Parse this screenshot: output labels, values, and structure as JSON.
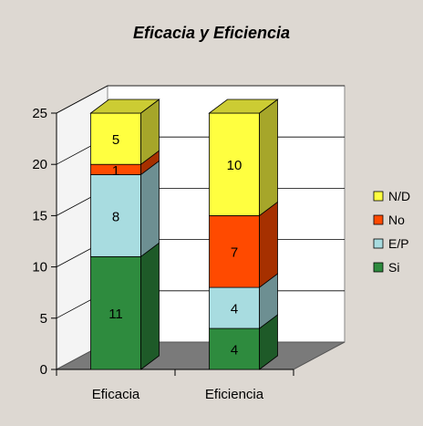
{
  "chart_data": {
    "type": "bar",
    "stacked": true,
    "three_d": true,
    "title": "Eficacia y Eficiencia",
    "categories": [
      "Eficacia",
      "Eficiencia"
    ],
    "series": [
      {
        "name": "Si",
        "values": [
          11,
          4
        ],
        "color": "#2e8b3e"
      },
      {
        "name": "E/P",
        "values": [
          8,
          4
        ],
        "color": "#a8dce0"
      },
      {
        "name": "No",
        "values": [
          1,
          7
        ],
        "color": "#ff4a00"
      },
      {
        "name": "N/D",
        "values": [
          5,
          10
        ],
        "color": "#ffff40"
      }
    ],
    "ylim": [
      0,
      25
    ],
    "yticks": [
      0,
      5,
      10,
      15,
      20,
      25
    ],
    "grid": true,
    "legend": "right",
    "data_labels": true
  },
  "colors": {
    "background": "#ddd8d2",
    "wall": "#ffffff",
    "floor": "#7a7a7a"
  }
}
